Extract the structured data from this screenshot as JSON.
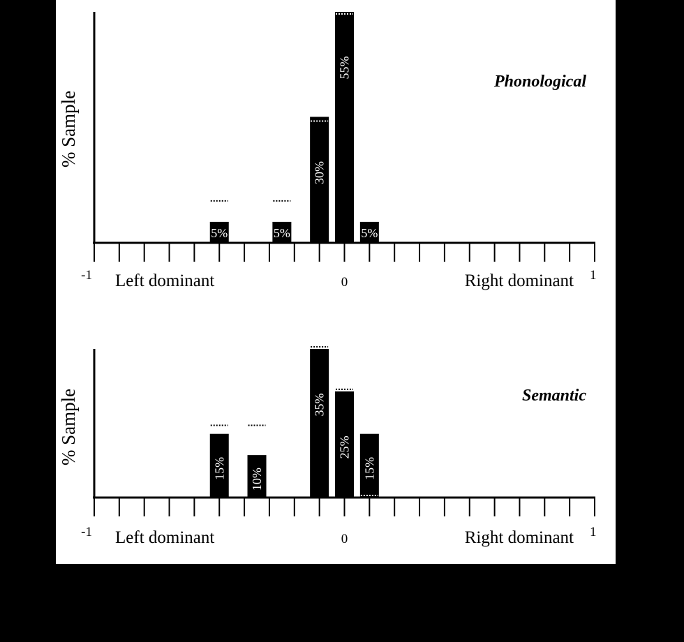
{
  "colors": {
    "page_background": "#000000",
    "figure_background": "#ffffff",
    "ink": "#000000",
    "bar_label": "#ffffff"
  },
  "chart_data": [
    {
      "type": "bar",
      "title": "Phonological",
      "xlabel_left": "Left dominant",
      "xlabel_right": "Right dominant",
      "ylabel": "% Sample",
      "x_ticks_labeled": {
        "min": "-1",
        "zero": "0",
        "max": "1"
      },
      "xlim": [
        -1,
        1
      ],
      "ylim": [
        0,
        55
      ],
      "grid": false,
      "bars": [
        {
          "x": -0.5,
          "value": 5,
          "label": "5%",
          "label_orientation": "horizontal",
          "marker": 10
        },
        {
          "x": -0.25,
          "value": 5,
          "label": "5%",
          "label_orientation": "horizontal",
          "marker": 10
        },
        {
          "x": -0.1,
          "value": 30,
          "label": "30%",
          "label_orientation": "vertical",
          "marker": 29
        },
        {
          "x": 0.0,
          "value": 55,
          "label": "55%",
          "label_orientation": "vertical",
          "marker": 54.5
        },
        {
          "x": 0.1,
          "value": 5,
          "label": "5%",
          "label_orientation": "horizontal",
          "marker": null
        }
      ]
    },
    {
      "type": "bar",
      "title": "Semantic",
      "xlabel_left": "Left dominant",
      "xlabel_right": "Right dominant",
      "ylabel": "% Sample",
      "x_ticks_labeled": {
        "min": "-1",
        "zero": "0",
        "max": "1"
      },
      "xlim": [
        -1,
        1
      ],
      "ylim": [
        0,
        35
      ],
      "grid": false,
      "bars": [
        {
          "x": -0.5,
          "value": 15,
          "label": "15%",
          "label_orientation": "vertical",
          "marker": 17
        },
        {
          "x": -0.35,
          "value": 10,
          "label": "10%",
          "label_orientation": "vertical",
          "marker": 17
        },
        {
          "x": -0.1,
          "value": 35,
          "label": "35%",
          "label_orientation": "vertical",
          "marker": 35.5
        },
        {
          "x": 0.0,
          "value": 25,
          "label": "25%",
          "label_orientation": "vertical",
          "marker": 25.5
        },
        {
          "x": 0.1,
          "value": 15,
          "label": "15%",
          "label_orientation": "vertical",
          "marker": 0.5
        }
      ]
    }
  ]
}
